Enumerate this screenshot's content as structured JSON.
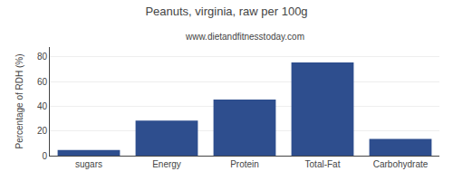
{
  "chart_data": {
    "type": "bar",
    "title": "Peanuts, virginia, raw per 100g",
    "subtitle": "www.dietandfitnesstoday.com",
    "categories": [
      "sugars",
      "Energy",
      "Protein",
      "Total-Fat",
      "Carbohydrate"
    ],
    "values": [
      4.5,
      28.5,
      45.5,
      75.5,
      13.5
    ],
    "color": "#2e4e8e",
    "ylabel": "Percentage of RDH (%)",
    "ylim": [
      0,
      88
    ],
    "yticks": [
      0,
      20,
      40,
      60,
      80
    ],
    "grid": true
  }
}
